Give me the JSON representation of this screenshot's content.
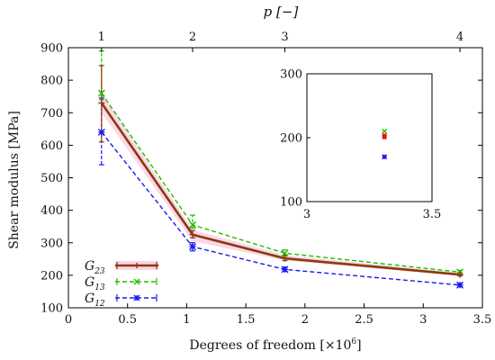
{
  "chart_data": {
    "type": "line",
    "xlabel_main": "Degrees of freedom [×10",
    "xlabel_exp": "6",
    "xlabel_close": "]",
    "ylabel": "Shear modulus [MPa]",
    "top_axis_label": "p [−]",
    "xlim": [
      0,
      3.5
    ],
    "ylim": [
      100,
      900
    ],
    "xticks": [
      0,
      0.5,
      1,
      1.5,
      2,
      2.5,
      3,
      3.5
    ],
    "xtick_labels": [
      "0",
      "0.5",
      "1",
      "1.5",
      "2",
      "2.5",
      "3",
      "3.5"
    ],
    "yticks": [
      100,
      200,
      300,
      400,
      500,
      600,
      700,
      800,
      900
    ],
    "ytick_labels": [
      "100",
      "200",
      "300",
      "400",
      "500",
      "600",
      "700",
      "800",
      "900"
    ],
    "top_ticks": [
      {
        "label": "1",
        "x": 0.28
      },
      {
        "label": "2",
        "x": 1.05
      },
      {
        "label": "3",
        "x": 1.83
      },
      {
        "label": "4",
        "x": 3.31
      }
    ],
    "legend_position": "bottom-left",
    "series": [
      {
        "name": "G23",
        "sub": "23",
        "color": "#8b3a0e",
        "band_color": "#f7b7d6",
        "style": "solid",
        "marker": "plus",
        "x": [
          0.28,
          1.05,
          1.83,
          3.31
        ],
        "y": [
          730,
          325,
          252,
          202
        ],
        "err_low": [
          610,
          315,
          245,
          198
        ],
        "err_high": [
          845,
          338,
          262,
          208
        ],
        "band_low": [
          700,
          305,
          245,
          198
        ],
        "band_high": [
          760,
          340,
          262,
          208
        ]
      },
      {
        "name": "G13",
        "sub": "13",
        "color": "#22bb00",
        "style": "dashed",
        "marker": "x",
        "x": [
          0.28,
          1.05,
          1.83,
          3.31
        ],
        "y": [
          760,
          355,
          268,
          210
        ],
        "err_low": [
          740,
          345,
          260,
          205
        ],
        "err_high": [
          890,
          385,
          278,
          215
        ]
      },
      {
        "name": "G12",
        "sub": "12",
        "color": "#1a1aee",
        "style": "dashed",
        "marker": "star",
        "x": [
          0.28,
          1.05,
          1.83,
          3.31
        ],
        "y": [
          640,
          288,
          218,
          170
        ],
        "err_low": [
          540,
          275,
          212,
          165
        ],
        "err_high": [
          745,
          300,
          225,
          175
        ]
      }
    ],
    "inset": {
      "xlim": [
        3,
        3.5
      ],
      "ylim": [
        100,
        300
      ],
      "xticks": [
        3,
        3.5
      ],
      "xtick_labels": [
        "3",
        "3.5"
      ],
      "yticks": [
        100,
        200,
        300
      ],
      "ytick_labels": [
        "100",
        "200",
        "300"
      ],
      "points": [
        {
          "series": "G13",
          "x": 3.31,
          "y": 210,
          "color": "#22bb00"
        },
        {
          "series": "G23",
          "x": 3.31,
          "y": 202,
          "color": "#ee1111"
        },
        {
          "series": "G12",
          "x": 3.31,
          "y": 170,
          "color": "#1a1aee"
        }
      ]
    }
  }
}
